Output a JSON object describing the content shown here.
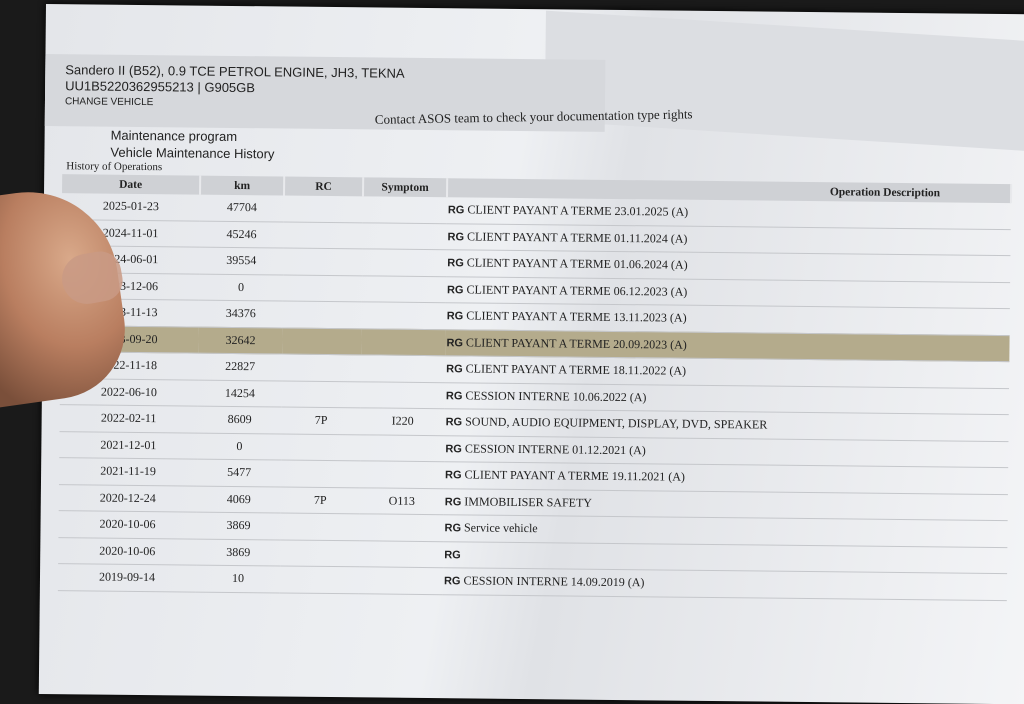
{
  "vehicle": {
    "model": "Sandero II (B52), 0.9 TCE PETROL ENGINE, JH3, TEKNA",
    "vin": "UU1B5220362955213 | G905GB",
    "change": "CHANGE VEHICLE"
  },
  "contact": "Contact ASOS team to check your documentation type rights",
  "program": {
    "title": "Maintenance program",
    "subtitle": "Vehicle Maintenance History"
  },
  "history_label": "History of Operations",
  "columns": [
    "Date",
    "km",
    "RC",
    "Symptom",
    "Operation Description"
  ],
  "rg_label": "RG",
  "highlight_color": "#b4ab8c",
  "rows": [
    {
      "date": "2025-01-23",
      "km": "47704",
      "rc": "",
      "symptom": "",
      "desc": "CLIENT PAYANT A TERME 23.01.2025 (A)"
    },
    {
      "date": "2024-11-01",
      "km": "45246",
      "rc": "",
      "symptom": "",
      "desc": "CLIENT PAYANT A TERME 01.11.2024 (A)"
    },
    {
      "date": "2024-06-01",
      "km": "39554",
      "rc": "",
      "symptom": "",
      "desc": "CLIENT PAYANT A TERME 01.06.2024 (A)"
    },
    {
      "date": "2023-12-06",
      "km": "0",
      "rc": "",
      "symptom": "",
      "desc": "CLIENT PAYANT A TERME 06.12.2023 (A)"
    },
    {
      "date": "2023-11-13",
      "km": "34376",
      "rc": "",
      "symptom": "",
      "desc": "CLIENT PAYANT A TERME 13.11.2023 (A)"
    },
    {
      "date": "2023-09-20",
      "km": "32642",
      "rc": "",
      "symptom": "",
      "desc": "CLIENT PAYANT A TERME 20.09.2023 (A)",
      "highlight": true
    },
    {
      "date": "2022-11-18",
      "km": "22827",
      "rc": "",
      "symptom": "",
      "desc": "CLIENT PAYANT A TERME 18.11.2022 (A)"
    },
    {
      "date": "2022-06-10",
      "km": "14254",
      "rc": "",
      "symptom": "",
      "desc": "CESSION INTERNE 10.06.2022 (A)"
    },
    {
      "date": "2022-02-11",
      "km": "8609",
      "rc": "7P",
      "symptom": "I220",
      "desc": "SOUND, AUDIO EQUIPMENT, DISPLAY, DVD, SPEAKER"
    },
    {
      "date": "2021-12-01",
      "km": "0",
      "rc": "",
      "symptom": "",
      "desc": "CESSION INTERNE 01.12.2021 (A)"
    },
    {
      "date": "2021-11-19",
      "km": "5477",
      "rc": "",
      "symptom": "",
      "desc": "CLIENT PAYANT A TERME 19.11.2021 (A)"
    },
    {
      "date": "2020-12-24",
      "km": "4069",
      "rc": "7P",
      "symptom": "O113",
      "desc": "IMMOBILISER SAFETY"
    },
    {
      "date": "2020-10-06",
      "km": "3869",
      "rc": "",
      "symptom": "",
      "desc": "Service vehicle"
    },
    {
      "date": "2020-10-06",
      "km": "3869",
      "rc": "",
      "symptom": "",
      "desc": ""
    },
    {
      "date": "2019-09-14",
      "km": "10",
      "rc": "",
      "symptom": "",
      "desc": "CESSION INTERNE 14.09.2019 (A)"
    }
  ]
}
